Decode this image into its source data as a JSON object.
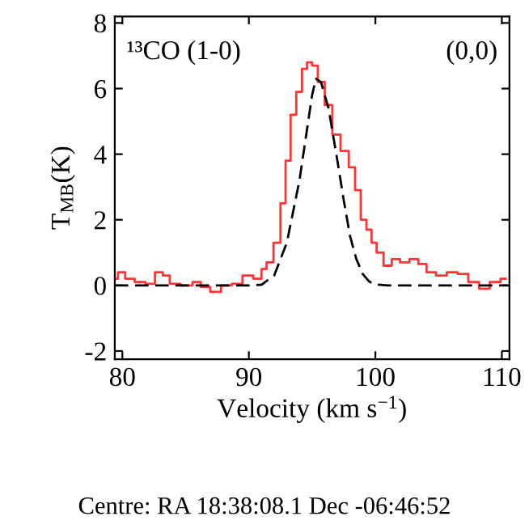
{
  "chart_data": {
    "type": "line",
    "xlabel": "Velocity (km s$^{−1}$)",
    "ylabel": "T$_{MB}$(K)",
    "xlim": [
      79.4,
      110.6
    ],
    "ylim": [
      -2.25,
      8.2
    ],
    "xticks": [
      80,
      90,
      100,
      110
    ],
    "yticks": [
      -2,
      0,
      2,
      4,
      6,
      8
    ],
    "grid": false,
    "annotations": [
      "¹³CO (1-0)",
      "(0,0)",
      "Centre: RA 18:38:08.1 Dec -06:46:52"
    ],
    "series": [
      {
        "type": "step",
        "color": "#ff3333",
        "line_style": "solid",
        "x": [
          79.4,
          79.9,
          80.55,
          81.4,
          82.25,
          82.9,
          83.5,
          84.0,
          85.2,
          85.9,
          86.5,
          87.4,
          88.2,
          89.1,
          89.9,
          90.8,
          91.2,
          91.6,
          92.3,
          92.7,
          93.1,
          93.5,
          94.0,
          94.4,
          94.8,
          95.2,
          95.7,
          96.3,
          96.9,
          97.6,
          98.2,
          98.6,
          99.1,
          99.5,
          99.9,
          100.3,
          101.0,
          101.6,
          102.3,
          103.1,
          103.7,
          104.4,
          105.2,
          106.1,
          106.9,
          107.8,
          108.6,
          109.5,
          110.3
        ],
        "values": [
          0.2,
          0.4,
          0.2,
          0.1,
          0.05,
          0.4,
          0.3,
          0.05,
          0.0,
          0.1,
          -0.05,
          -0.2,
          0.0,
          0.05,
          0.3,
          0.2,
          0.5,
          0.7,
          1.3,
          2.5,
          3.8,
          5.2,
          5.9,
          6.6,
          6.8,
          6.7,
          6.2,
          5.5,
          4.6,
          4.1,
          3.6,
          2.9,
          2.0,
          1.7,
          1.3,
          1.0,
          0.6,
          0.8,
          0.7,
          0.8,
          0.65,
          0.4,
          0.3,
          0.4,
          0.35,
          0.1,
          -0.1,
          0.1,
          0.2
        ]
      },
      {
        "color": "#000000",
        "line_style": "dashed",
        "x": [
          79.4,
          90,
          91,
          92,
          93,
          94,
          94.5,
          95,
          95.3,
          95.7,
          96.3,
          97,
          97.5,
          98,
          98.5,
          99,
          99.5,
          100,
          101,
          110.6
        ],
        "values": [
          0,
          0,
          0.02,
          0.3,
          1.3,
          3.2,
          4.5,
          5.8,
          6.3,
          6.2,
          5.4,
          3.8,
          2.6,
          1.5,
          0.8,
          0.35,
          0.12,
          0.03,
          0,
          0
        ]
      }
    ]
  }
}
